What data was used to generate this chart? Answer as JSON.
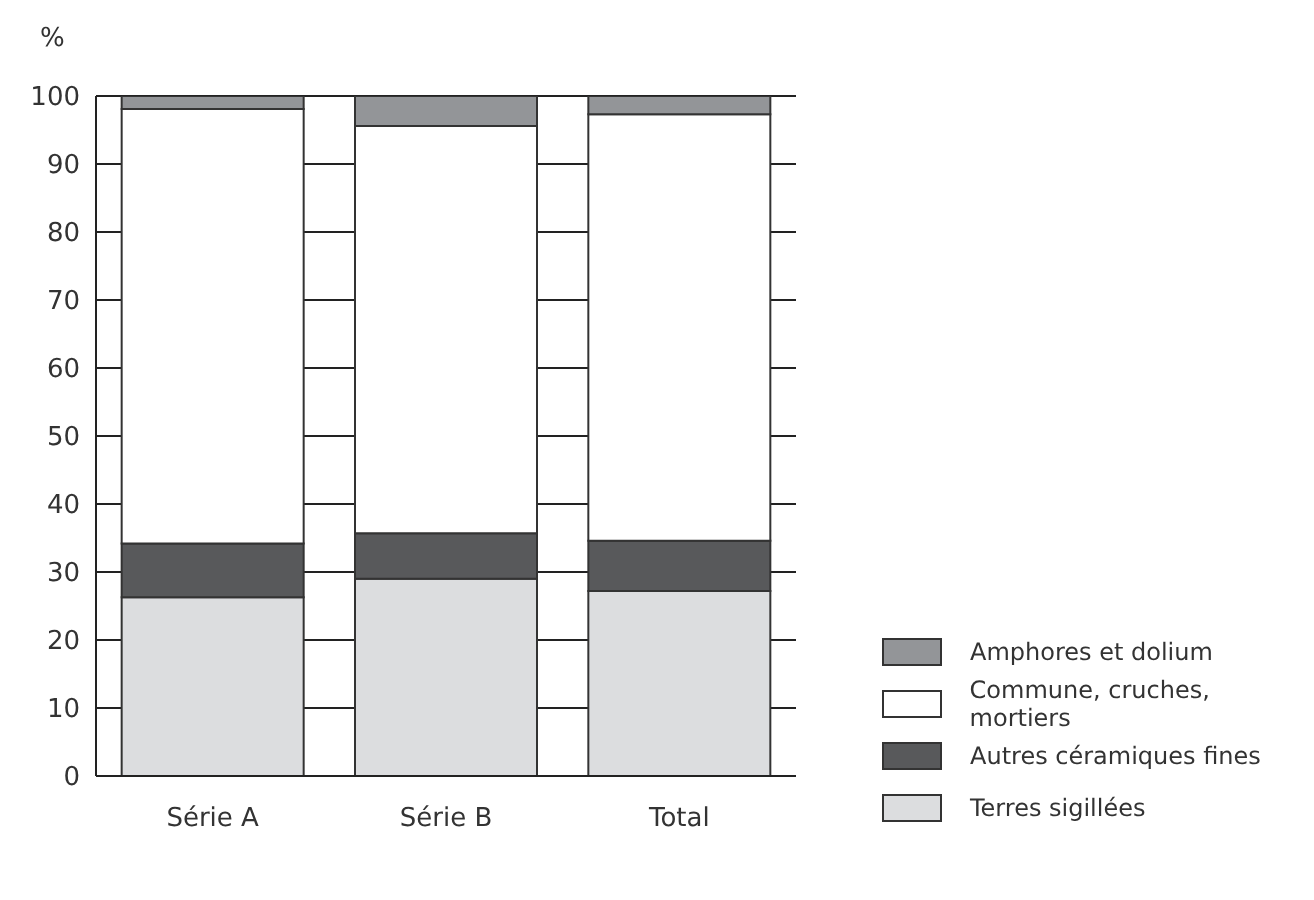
{
  "chart_data": {
    "type": "bar",
    "stacked": true,
    "ylabel": "%",
    "categories": [
      "Série A",
      "Série B",
      "Total"
    ],
    "series": [
      {
        "name": "Terres sigillées",
        "color": "#dcdddf",
        "values": [
          26.3,
          29,
          27.2
        ]
      },
      {
        "name": "Autres céramiques fines",
        "color": "#58595b",
        "values": [
          7.9,
          6.7,
          7.4
        ]
      },
      {
        "name": "Commune, cruches, mortiers",
        "color": "#ffffff",
        "values": [
          63.9,
          59.9,
          62.7
        ]
      },
      {
        "name": "Amphores et dolium",
        "color": "#939598",
        "values": [
          1.9,
          4.4,
          2.7
        ]
      }
    ],
    "ylim": [
      0,
      100
    ],
    "yticks": [
      0,
      10,
      20,
      30,
      40,
      50,
      60,
      70,
      80,
      90,
      100
    ],
    "grid": "y",
    "legend": "bottom right"
  }
}
